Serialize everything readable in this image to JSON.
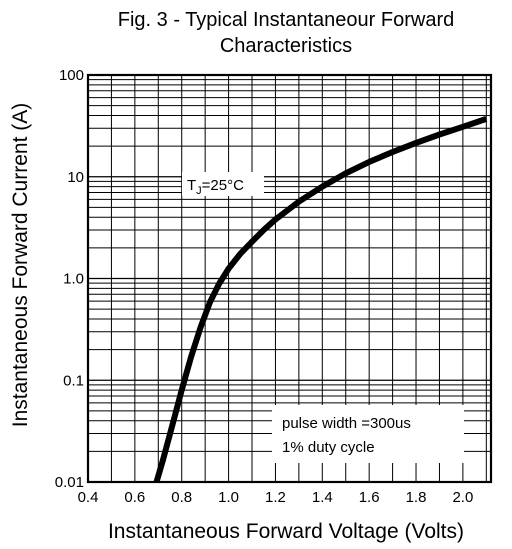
{
  "chart_data": {
    "type": "line",
    "title_line1": "Fig. 3 - Typical Instantaneour Forward",
    "title_line2": "Characteristics",
    "xlabel": "Instantaneous Forward Voltage (Volts)",
    "ylabel": "Instantaneous Forward Current (A)",
    "xlim": [
      0.4,
      2.12
    ],
    "ylim": [
      0.01,
      100
    ],
    "yscale": "log",
    "grid": true,
    "x_ticks": [
      "0.4",
      "0.6",
      "0.8",
      "1.0",
      "1.2",
      "1.4",
      "1.6",
      "1.8",
      "2.0"
    ],
    "y_ticks": [
      {
        "value": 100,
        "label": "100"
      },
      {
        "value": 10,
        "label": "10"
      },
      {
        "value": 1,
        "label": "1.0"
      },
      {
        "value": 0.1,
        "label": "0.1"
      },
      {
        "value": 0.01,
        "label": "0.01"
      }
    ],
    "annotations": {
      "tj_main": "T",
      "tj_sub": "J",
      "tj_rest": "=25°C",
      "pulse_line1": "pulse width =300us",
      "pulse_line2": "1% duty cycle"
    },
    "series": [
      {
        "x": [
          0.68,
          0.72,
          0.76,
          0.8,
          0.84,
          0.88,
          0.92,
          0.96,
          1.0,
          1.05,
          1.1,
          1.15,
          1.2,
          1.3,
          1.4,
          1.5,
          1.6,
          1.7,
          1.8,
          1.9,
          2.0,
          2.1
        ],
        "y": [
          0.008,
          0.0165,
          0.036,
          0.08,
          0.17,
          0.33,
          0.58,
          0.89,
          1.25,
          1.75,
          2.3,
          3.0,
          3.8,
          5.7,
          8.0,
          10.8,
          14.0,
          17.5,
          21.5,
          26.0,
          31.0,
          37.0
        ]
      }
    ]
  }
}
